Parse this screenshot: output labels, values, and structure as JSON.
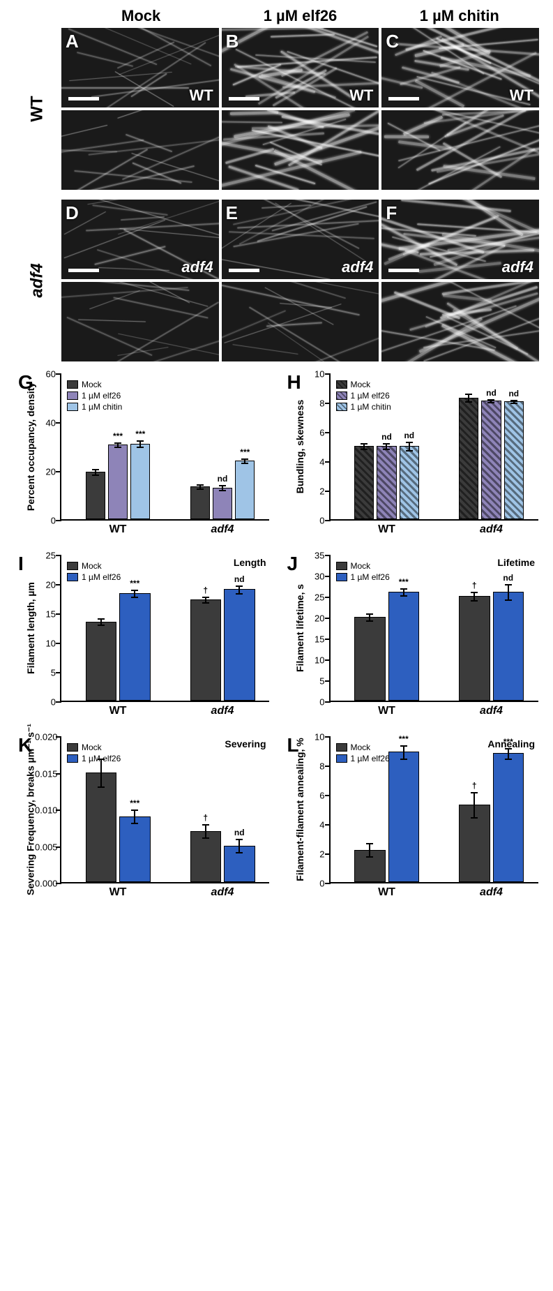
{
  "columns": [
    "Mock",
    "1 µM elf26",
    "1 µM chitin"
  ],
  "genotypes": {
    "wt_display": "WT",
    "adf4_display": "adf4"
  },
  "panels_top": [
    {
      "letter": "A",
      "geno": "WT"
    },
    {
      "letter": "B",
      "geno": "WT"
    },
    {
      "letter": "C",
      "geno": "WT"
    }
  ],
  "panels_bottom": [
    {
      "letter": "D",
      "geno": "adf4"
    },
    {
      "letter": "E",
      "geno": "adf4"
    },
    {
      "letter": "F",
      "geno": "adf4"
    }
  ],
  "colors": {
    "mock": "#3b3b3b",
    "elf26": "#8e84b8",
    "chitin": "#9fc4e6",
    "elf26_solid": "#2d5fbf",
    "axis": "#000000",
    "bg": "#ffffff"
  },
  "chart_G": {
    "letter": "G",
    "ylabel": "Percent occupancy, density",
    "ylim": [
      0,
      60
    ],
    "ytick_step": 20,
    "legend": [
      "Mock",
      "1 µM elf26",
      "1 µM chitin"
    ],
    "groups": [
      {
        "label": "WT",
        "bars": [
          {
            "key": "mock",
            "val": 19.5,
            "err": 1.5,
            "sig": ""
          },
          {
            "key": "elf26",
            "val": 30.5,
            "err": 1.2,
            "sig": "***"
          },
          {
            "key": "chitin",
            "val": 31.0,
            "err": 1.5,
            "sig": "***"
          }
        ]
      },
      {
        "label": "adf4",
        "bars": [
          {
            "key": "mock",
            "val": 13.5,
            "err": 1.2,
            "sig": ""
          },
          {
            "key": "elf26",
            "val": 13.0,
            "err": 1.3,
            "sig": "nd"
          },
          {
            "key": "chitin",
            "val": 24.0,
            "err": 1.2,
            "sig": "***"
          }
        ]
      }
    ]
  },
  "chart_H": {
    "letter": "H",
    "ylabel": "Bundling, skewness",
    "ylim": [
      0,
      10
    ],
    "ytick_step": 2,
    "legend": [
      "Mock",
      "1 µM elf26",
      "1 µM chitin"
    ],
    "hatched": true,
    "groups": [
      {
        "label": "WT",
        "bars": [
          {
            "key": "mock",
            "val": 5.0,
            "err": 0.25,
            "sig": ""
          },
          {
            "key": "elf26",
            "val": 5.0,
            "err": 0.25,
            "sig": "nd"
          },
          {
            "key": "chitin",
            "val": 5.0,
            "err": 0.35,
            "sig": "nd"
          }
        ]
      },
      {
        "label": "adf4",
        "bars": [
          {
            "key": "mock",
            "val": 8.3,
            "err": 0.3,
            "sig": ""
          },
          {
            "key": "elf26",
            "val": 8.1,
            "err": 0.15,
            "sig": "nd"
          },
          {
            "key": "chitin",
            "val": 8.05,
            "err": 0.15,
            "sig": "nd"
          }
        ]
      }
    ]
  },
  "chart_I": {
    "letter": "I",
    "sublabel": "Length",
    "ylabel": "Filament length, µm",
    "ylim": [
      0,
      25
    ],
    "ytick_step": 5,
    "legend": [
      "Mock",
      "1 µM elf26"
    ],
    "groups": [
      {
        "label": "WT",
        "bars": [
          {
            "key": "mock",
            "val": 13.5,
            "err": 0.7,
            "sig": ""
          },
          {
            "key": "elf26_solid",
            "val": 18.3,
            "err": 0.7,
            "sig": "***"
          }
        ]
      },
      {
        "label": "adf4",
        "bars": [
          {
            "key": "mock",
            "val": 17.3,
            "err": 0.6,
            "sig": "†"
          },
          {
            "key": "elf26_solid",
            "val": 19.0,
            "err": 0.8,
            "sig": "nd"
          }
        ]
      }
    ]
  },
  "chart_J": {
    "letter": "J",
    "sublabel": "Lifetime",
    "ylabel": "Filament lifetime, s",
    "ylim": [
      0,
      35
    ],
    "ytick_step": 5,
    "legend": [
      "Mock",
      "1 µM elf26"
    ],
    "groups": [
      {
        "label": "WT",
        "bars": [
          {
            "key": "mock",
            "val": 20.0,
            "err": 1.0,
            "sig": ""
          },
          {
            "key": "elf26_solid",
            "val": 26.0,
            "err": 1.0,
            "sig": "***"
          }
        ]
      },
      {
        "label": "adf4",
        "bars": [
          {
            "key": "mock",
            "val": 25.0,
            "err": 1.2,
            "sig": "†"
          },
          {
            "key": "elf26_solid",
            "val": 26.0,
            "err": 2.0,
            "sig": "nd"
          }
        ]
      }
    ]
  },
  "chart_K": {
    "letter": "K",
    "sublabel": "Severing",
    "ylabel": "Severing Frequency, breaks µm⁻¹ s⁻¹",
    "ylim": [
      0,
      0.02
    ],
    "ytick_step": 0.005,
    "decimals": 3,
    "legend": [
      "Mock",
      "1 µM elf26"
    ],
    "groups": [
      {
        "label": "WT",
        "bars": [
          {
            "key": "mock",
            "val": 0.015,
            "err": 0.002,
            "sig": ""
          },
          {
            "key": "elf26_solid",
            "val": 0.009,
            "err": 0.001,
            "sig": "***"
          }
        ]
      },
      {
        "label": "adf4",
        "bars": [
          {
            "key": "mock",
            "val": 0.007,
            "err": 0.001,
            "sig": "†"
          },
          {
            "key": "elf26_solid",
            "val": 0.005,
            "err": 0.001,
            "sig": "nd"
          }
        ]
      }
    ]
  },
  "chart_L": {
    "letter": "L",
    "sublabel": "Annealing",
    "ylabel": "Filament-filament annealing, %",
    "ylim": [
      0,
      10
    ],
    "ytick_step": 2,
    "legend": [
      "Mock",
      "1 µM elf26"
    ],
    "groups": [
      {
        "label": "WT",
        "bars": [
          {
            "key": "mock",
            "val": 2.2,
            "err": 0.5,
            "sig": ""
          },
          {
            "key": "elf26_solid",
            "val": 8.9,
            "err": 0.5,
            "sig": "***"
          }
        ]
      },
      {
        "label": "adf4",
        "bars": [
          {
            "key": "mock",
            "val": 5.3,
            "err": 0.9,
            "sig": "†"
          },
          {
            "key": "elf26_solid",
            "val": 8.8,
            "err": 0.4,
            "sig": "***"
          }
        ]
      }
    ]
  },
  "typography": {
    "panel_letter_pt": 26,
    "axis_label_pt": 14,
    "tick_pt": 13
  }
}
